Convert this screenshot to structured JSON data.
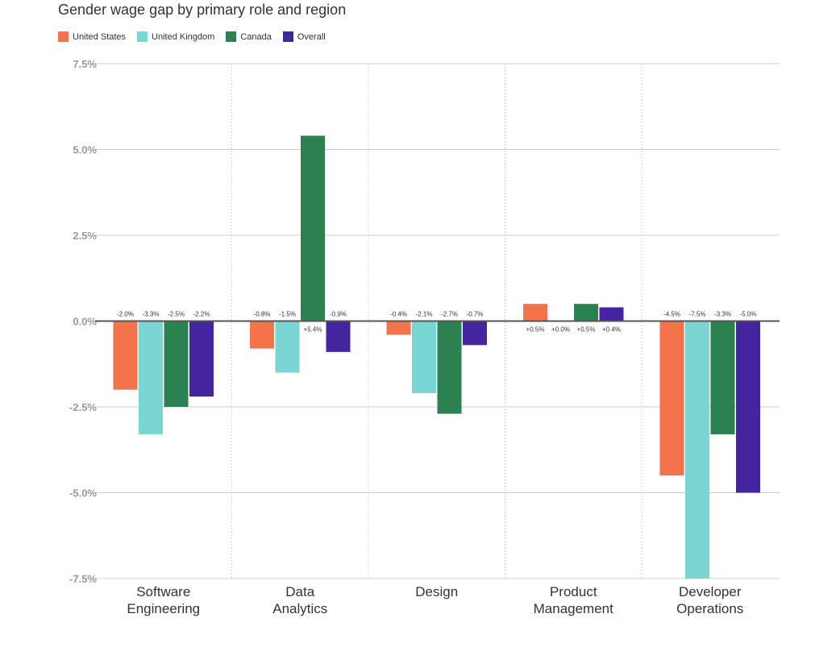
{
  "chart_data": {
    "type": "bar",
    "title": "Gender wage gap by primary role and region",
    "categories": [
      "Software\nEngineering",
      "Data\nAnalytics",
      "Design",
      "Product\nManagement",
      "Developer\nOperations"
    ],
    "series": [
      {
        "name": "United States",
        "color": "#f4734a",
        "values": [
          -2.0,
          -0.8,
          -0.4,
          0.5,
          -4.5
        ],
        "labels": [
          "-2.0%",
          "-0.8%",
          "-0.4%",
          "+0.5%",
          "-4.5%"
        ]
      },
      {
        "name": "United Kingdom",
        "color": "#7ad6d3",
        "values": [
          -3.3,
          -1.5,
          -2.1,
          0.0,
          -7.5
        ],
        "labels": [
          "-3.3%",
          "-1.5%",
          "-2.1%",
          "+0.0%",
          "-7.5%"
        ]
      },
      {
        "name": "Canada",
        "color": "#2b8250",
        "values": [
          -2.5,
          5.4,
          -2.7,
          0.5,
          -3.3
        ],
        "labels": [
          "-2.5%",
          "+5.4%",
          "-2.7%",
          "+0.5%",
          "-3.3%"
        ]
      },
      {
        "name": "Overall",
        "color": "#4524a0",
        "values": [
          -2.2,
          -0.9,
          -0.7,
          0.4,
          -5.0
        ],
        "labels": [
          "-2.2%",
          "-0.9%",
          "-0.7%",
          "+0.4%",
          "-5.0%"
        ]
      }
    ],
    "ylim": [
      -7.5,
      7.5
    ],
    "yticks": [
      7.5,
      5.0,
      2.5,
      0.0,
      -2.5,
      -5.0,
      -7.5
    ],
    "ytick_labels": [
      "7.5%",
      "5.0%",
      "2.5%",
      "0.0%",
      "-2.5%",
      "-5.0%",
      "-7.5%"
    ],
    "xlabel": "",
    "ylabel": "",
    "legend_position": "top-left",
    "grid": true
  }
}
